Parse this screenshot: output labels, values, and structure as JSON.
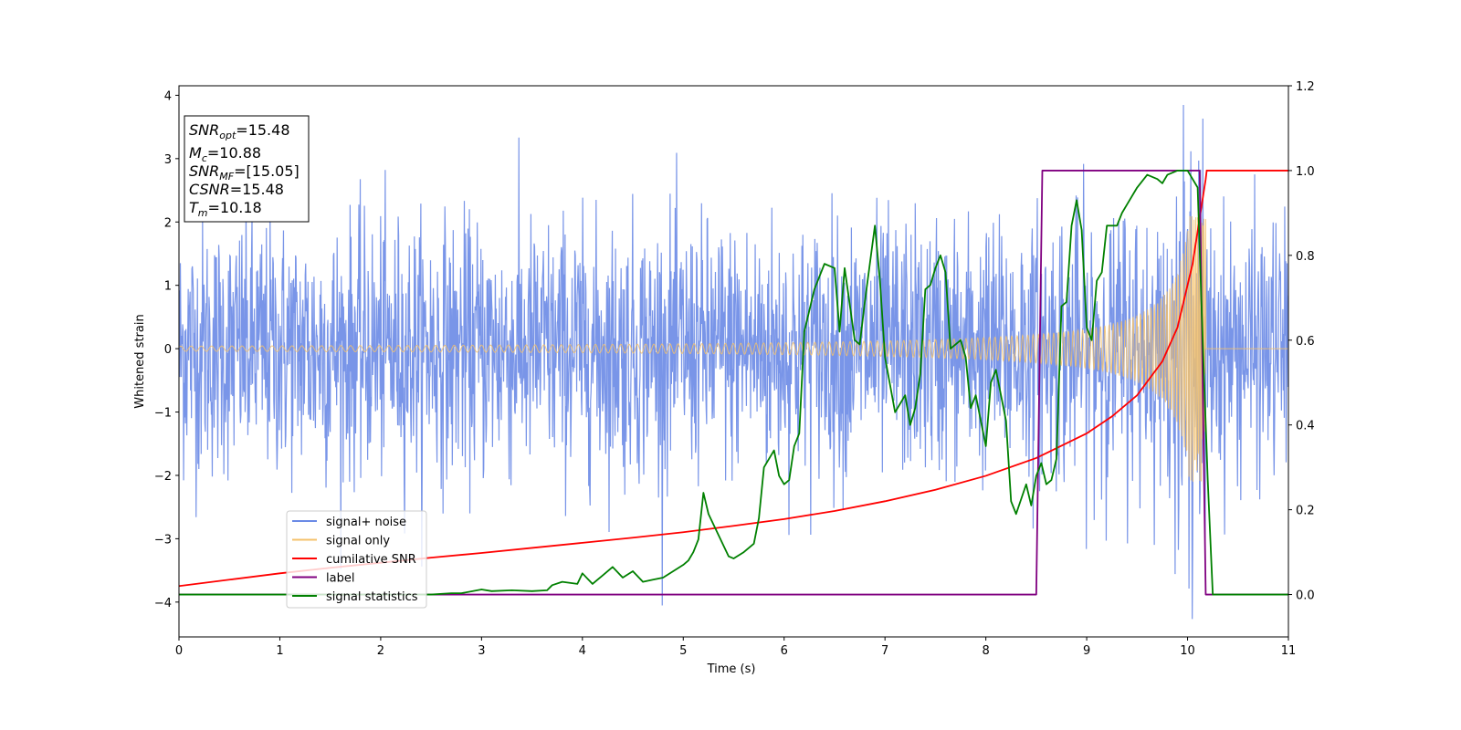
{
  "chart_data": {
    "type": "line",
    "xlabel": "Time (s)",
    "ylabel": "Whitened strain",
    "xlim": [
      0,
      11
    ],
    "ylim_left": [
      -4.55,
      4.15
    ],
    "ylim_right": [
      -0.1,
      1.2
    ],
    "xticks": [
      "0",
      "1",
      "2",
      "3",
      "4",
      "5",
      "6",
      "7",
      "8",
      "9",
      "10",
      "11"
    ],
    "yticks_left": [
      "−4",
      "−3",
      "−2",
      "−1",
      "0",
      "1",
      "2",
      "3",
      "4"
    ],
    "yticks_right": [
      "0.0",
      "0.2",
      "0.4",
      "0.6",
      "0.8",
      "1.0",
      "1.2"
    ],
    "colors": {
      "noise": "#6a8ae6",
      "signal": "#f5c26b",
      "cumulative": "#ff0000",
      "label": "#800080",
      "statistics": "#008000"
    },
    "info_box": {
      "lines": [
        {
          "base": "SNR",
          "sub": "opt",
          "value": "=15.48"
        },
        {
          "base": "M",
          "sub": "c",
          "value": "=10.88"
        },
        {
          "base": "SNR",
          "sub": "MF",
          "value": "=[15.05]"
        },
        {
          "base": "CSNR",
          "sub": "",
          "value": "=15.48"
        },
        {
          "base": "T",
          "sub": "m",
          "value": "=10.18"
        }
      ]
    },
    "legend": {
      "location": "lower-left",
      "entries": [
        "signal+ noise",
        "signal only",
        "cumilative SNR",
        "label",
        "signal statistics"
      ]
    },
    "series": [
      {
        "name": "signal+ noise",
        "axis": "left",
        "kind": "noise",
        "noise_sigma": 1.0,
        "x_range": [
          0,
          11
        ],
        "samples": 2400
      },
      {
        "name": "signal only",
        "axis": "left",
        "kind": "chirp",
        "x_range": [
          0,
          10.18
        ],
        "merger_time": 10.18,
        "amplitude_at_2s": 0.05,
        "amplitude_peak": 2.1
      },
      {
        "name": "cumilative SNR",
        "axis": "right",
        "x": [
          0,
          0.5,
          1,
          1.5,
          2,
          2.5,
          3,
          3.5,
          4,
          4.5,
          5,
          5.5,
          6,
          6.5,
          7,
          7.5,
          8,
          8.5,
          9,
          9.25,
          9.5,
          9.75,
          9.9,
          10.05,
          10.18,
          10.19,
          11
        ],
        "y": [
          0.02,
          0.035,
          0.05,
          0.063,
          0.075,
          0.087,
          0.098,
          0.11,
          0.122,
          0.134,
          0.147,
          0.162,
          0.178,
          0.197,
          0.22,
          0.247,
          0.28,
          0.322,
          0.38,
          0.42,
          0.47,
          0.55,
          0.63,
          0.78,
          0.98,
          1.0,
          1.0
        ]
      },
      {
        "name": "label",
        "axis": "right",
        "x": [
          0,
          8.5,
          8.56,
          10.12,
          10.18,
          11
        ],
        "y": [
          0.0,
          0.0,
          1.0,
          1.0,
          0.0,
          0.0
        ]
      },
      {
        "name": "signal statistics",
        "axis": "right",
        "x": [
          0,
          0.5,
          1,
          1.5,
          2,
          2.5,
          2.7,
          2.8,
          3.0,
          3.1,
          3.3,
          3.5,
          3.65,
          3.7,
          3.8,
          3.95,
          4.0,
          4.1,
          4.2,
          4.3,
          4.4,
          4.5,
          4.6,
          4.7,
          4.8,
          4.9,
          5.0,
          5.05,
          5.1,
          5.15,
          5.2,
          5.25,
          5.35,
          5.45,
          5.5,
          5.6,
          5.7,
          5.75,
          5.8,
          5.9,
          5.95,
          6.0,
          6.05,
          6.1,
          6.15,
          6.2,
          6.3,
          6.4,
          6.5,
          6.55,
          6.6,
          6.7,
          6.75,
          6.8,
          6.9,
          6.95,
          7.0,
          7.1,
          7.15,
          7.2,
          7.25,
          7.3,
          7.35,
          7.4,
          7.45,
          7.5,
          7.55,
          7.6,
          7.65,
          7.7,
          7.75,
          7.8,
          7.85,
          7.9,
          7.95,
          8.0,
          8.05,
          8.1,
          8.2,
          8.25,
          8.3,
          8.4,
          8.45,
          8.5,
          8.55,
          8.6,
          8.65,
          8.7,
          8.75,
          8.8,
          8.85,
          8.9,
          8.95,
          9.0,
          9.05,
          9.1,
          9.15,
          9.2,
          9.3,
          9.35,
          9.4,
          9.5,
          9.6,
          9.7,
          9.75,
          9.8,
          9.9,
          10.0,
          10.1,
          10.15,
          10.2,
          10.25,
          11
        ],
        "y": [
          0.0,
          0.0,
          0.0,
          0.0,
          0.0,
          0.0,
          0.003,
          0.003,
          0.012,
          0.008,
          0.01,
          0.008,
          0.01,
          0.022,
          0.03,
          0.025,
          0.05,
          0.025,
          0.045,
          0.065,
          0.04,
          0.055,
          0.03,
          0.035,
          0.04,
          0.055,
          0.07,
          0.08,
          0.1,
          0.13,
          0.24,
          0.19,
          0.14,
          0.09,
          0.085,
          0.1,
          0.12,
          0.18,
          0.3,
          0.34,
          0.28,
          0.26,
          0.27,
          0.35,
          0.38,
          0.62,
          0.72,
          0.78,
          0.77,
          0.62,
          0.77,
          0.6,
          0.59,
          0.69,
          0.87,
          0.74,
          0.56,
          0.43,
          0.45,
          0.47,
          0.4,
          0.44,
          0.52,
          0.72,
          0.73,
          0.77,
          0.8,
          0.76,
          0.58,
          0.59,
          0.6,
          0.56,
          0.44,
          0.47,
          0.41,
          0.35,
          0.5,
          0.53,
          0.41,
          0.22,
          0.19,
          0.26,
          0.21,
          0.28,
          0.31,
          0.26,
          0.27,
          0.32,
          0.68,
          0.69,
          0.87,
          0.93,
          0.86,
          0.63,
          0.6,
          0.74,
          0.76,
          0.87,
          0.87,
          0.9,
          0.92,
          0.96,
          0.99,
          0.98,
          0.97,
          0.99,
          1.0,
          1.0,
          0.96,
          0.6,
          0.27,
          0.0,
          0.0
        ]
      }
    ]
  }
}
